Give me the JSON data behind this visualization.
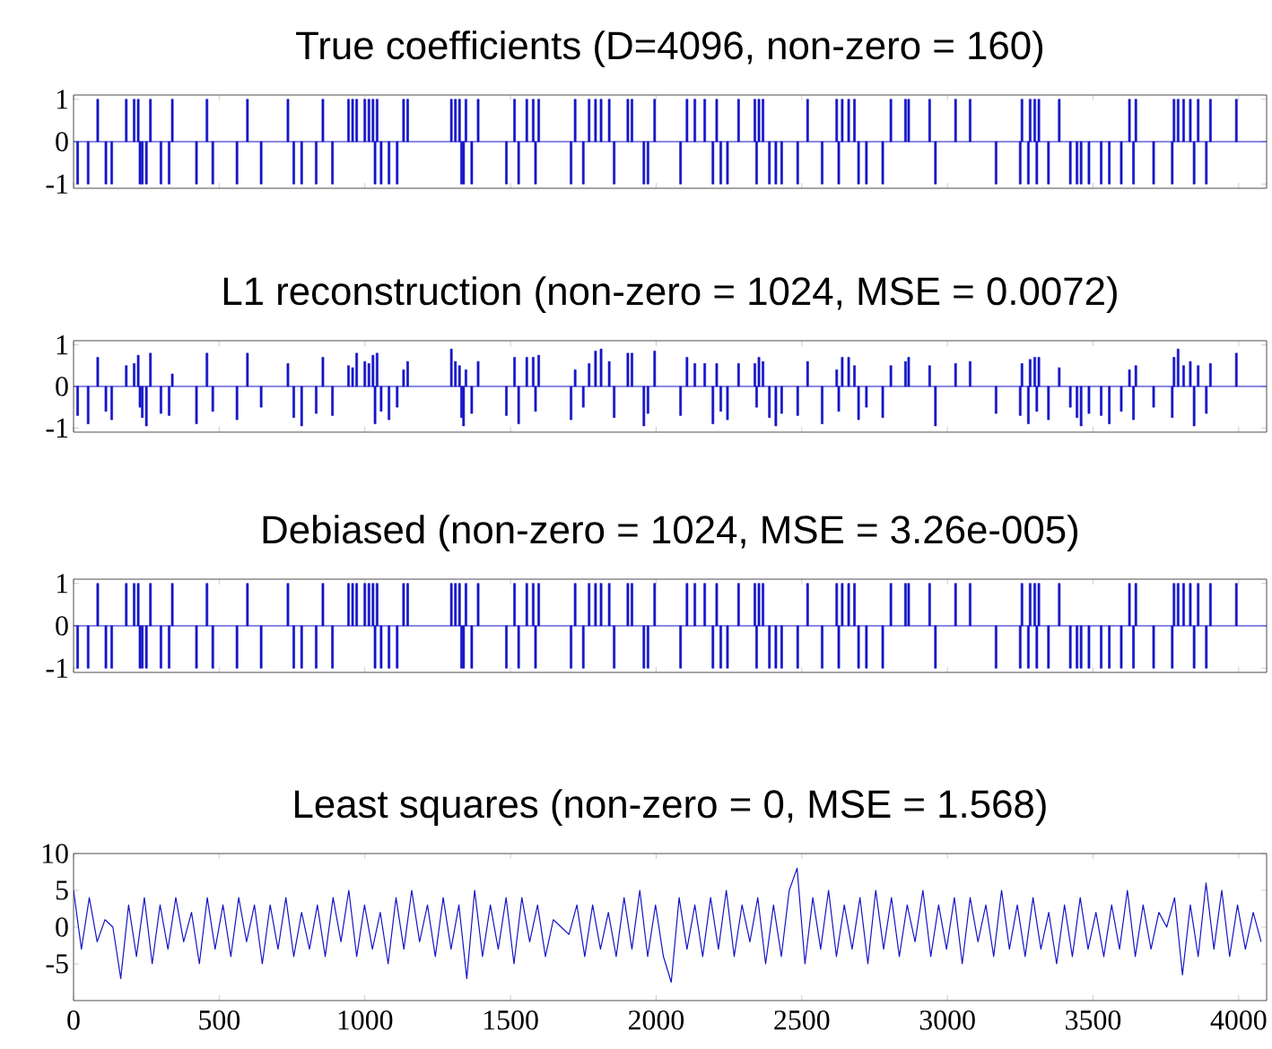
{
  "chart_data": [
    {
      "type": "bar",
      "title": "True coefficients (D=4096, non-zero = 160)",
      "color": "#1414c8",
      "tick_labels": "y",
      "xlim": [
        0,
        4096
      ],
      "ylim": [
        -1.1,
        1.1
      ],
      "xticks": [
        0,
        500,
        1000,
        1500,
        2000,
        2500,
        3000,
        3500,
        4000
      ],
      "yticks": [
        -1,
        0,
        1
      ],
      "ref_lines": [
        {
          "axis": "y",
          "value": 0,
          "color": "#1414c8"
        }
      ],
      "x": [
        14,
        50,
        83,
        111,
        131,
        181,
        208,
        222,
        228,
        236,
        250,
        264,
        300,
        328,
        339,
        422,
        458,
        478,
        561,
        597,
        644,
        736,
        756,
        783,
        833,
        856,
        889,
        944,
        958,
        972,
        1000,
        1014,
        1028,
        1035,
        1042,
        1056,
        1083,
        1111,
        1133,
        1147,
        1297,
        1311,
        1325,
        1332,
        1339,
        1347,
        1367,
        1389,
        1486,
        1514,
        1528,
        1556,
        1578,
        1586,
        1597,
        1708,
        1722,
        1750,
        1770,
        1792,
        1811,
        1839,
        1856,
        1903,
        1917,
        1958,
        1972,
        1995,
        2084,
        2106,
        2133,
        2167,
        2195,
        2208,
        2222,
        2245,
        2283,
        2339,
        2345,
        2353,
        2367,
        2389,
        2411,
        2431,
        2486,
        2520,
        2570,
        2620,
        2627,
        2639,
        2661,
        2681,
        2695,
        2722,
        2778,
        2806,
        2856,
        2867,
        2939,
        2959,
        3028,
        3078,
        3167,
        3250,
        3256,
        3278,
        3284,
        3300,
        3307,
        3314,
        3347,
        3384,
        3422,
        3445,
        3459,
        3486,
        3528,
        3556,
        3597,
        3625,
        3639,
        3647,
        3708,
        3772,
        3778,
        3792,
        3811,
        3834,
        3847,
        3861,
        3889,
        3903,
        3992
      ],
      "values": [
        -1,
        -1,
        1,
        -1,
        -1,
        1,
        1,
        1,
        -1,
        -1,
        -1,
        1,
        -1,
        -1,
        1,
        -1,
        1,
        -1,
        -1,
        1,
        -1,
        1,
        -1,
        -1,
        -1,
        1,
        -1,
        1,
        1,
        1,
        1,
        1,
        1,
        -1,
        1,
        -1,
        -1,
        -1,
        1,
        1,
        1,
        1,
        1,
        -1,
        -1,
        1,
        -1,
        1,
        -1,
        1,
        -1,
        1,
        1,
        -1,
        1,
        -1,
        1,
        -1,
        1,
        1,
        1,
        1,
        -1,
        1,
        1,
        -1,
        -1,
        1,
        -1,
        1,
        1,
        1,
        -1,
        1,
        -1,
        -1,
        1,
        1,
        -1,
        1,
        1,
        -1,
        -1,
        -1,
        -1,
        1,
        -1,
        1,
        -1,
        1,
        1,
        1,
        -1,
        -1,
        -1,
        1,
        1,
        1,
        1,
        -1,
        1,
        1,
        -1,
        -1,
        1,
        -1,
        1,
        1,
        -1,
        1,
        -1,
        1,
        -1,
        -1,
        -1,
        -1,
        -1,
        -1,
        -1,
        1,
        -1,
        1,
        -1,
        -1,
        1,
        1,
        1,
        1,
        -1,
        1,
        -1,
        1,
        1
      ]
    },
    {
      "type": "bar",
      "title": "L1 reconstruction (non-zero = 1024, MSE = 0.0072)",
      "color": "#1414c8",
      "tick_labels": "y",
      "xlim": [
        0,
        4096
      ],
      "ylim": [
        -1.1,
        1.1
      ],
      "xticks": [
        0,
        500,
        1000,
        1500,
        2000,
        2500,
        3000,
        3500,
        4000
      ],
      "yticks": [
        -1,
        0,
        1
      ],
      "ref_lines": [
        {
          "axis": "y",
          "value": 0,
          "color": "#1414c8"
        }
      ],
      "x": [
        14,
        50,
        83,
        111,
        131,
        181,
        208,
        222,
        228,
        236,
        250,
        264,
        300,
        328,
        339,
        422,
        458,
        478,
        561,
        597,
        644,
        736,
        756,
        783,
        833,
        856,
        889,
        944,
        958,
        972,
        1000,
        1014,
        1028,
        1035,
        1042,
        1056,
        1083,
        1111,
        1133,
        1147,
        1297,
        1311,
        1325,
        1332,
        1339,
        1347,
        1367,
        1389,
        1486,
        1514,
        1528,
        1556,
        1578,
        1586,
        1597,
        1708,
        1722,
        1750,
        1770,
        1792,
        1811,
        1839,
        1856,
        1903,
        1917,
        1958,
        1972,
        1995,
        2084,
        2106,
        2133,
        2167,
        2195,
        2208,
        2222,
        2245,
        2283,
        2339,
        2345,
        2353,
        2367,
        2389,
        2411,
        2431,
        2486,
        2520,
        2570,
        2620,
        2627,
        2639,
        2661,
        2681,
        2695,
        2722,
        2778,
        2806,
        2856,
        2867,
        2939,
        2959,
        3028,
        3078,
        3167,
        3250,
        3256,
        3278,
        3284,
        3300,
        3307,
        3314,
        3347,
        3384,
        3422,
        3445,
        3459,
        3486,
        3528,
        3556,
        3597,
        3625,
        3639,
        3647,
        3708,
        3772,
        3778,
        3792,
        3811,
        3834,
        3847,
        3861,
        3889,
        3903,
        3992
      ],
      "values": [
        -0.7,
        -0.9,
        0.7,
        -0.6,
        -0.8,
        0.5,
        0.55,
        0.75,
        -0.5,
        -0.75,
        -0.95,
        0.8,
        -0.65,
        -0.7,
        0.3,
        -0.9,
        0.8,
        -0.6,
        -0.8,
        0.8,
        -0.5,
        0.55,
        -0.75,
        -0.95,
        -0.65,
        0.7,
        -0.7,
        0.5,
        0.45,
        0.8,
        0.6,
        0.55,
        0.75,
        -0.9,
        0.8,
        -0.6,
        -0.8,
        -0.5,
        0.4,
        0.6,
        0.9,
        0.6,
        0.5,
        -0.75,
        -0.95,
        0.4,
        -0.65,
        0.6,
        -0.7,
        0.7,
        -0.9,
        0.7,
        0.7,
        -0.6,
        0.75,
        -0.8,
        0.4,
        -0.5,
        0.55,
        0.85,
        0.9,
        0.6,
        -0.75,
        0.8,
        0.8,
        -0.95,
        -0.65,
        0.85,
        -0.7,
        0.7,
        0.55,
        0.55,
        -0.9,
        0.55,
        -0.6,
        -0.8,
        0.55,
        0.55,
        -0.5,
        0.7,
        0.6,
        -0.75,
        -0.95,
        -0.65,
        -0.7,
        0.6,
        -0.9,
        0.4,
        -0.6,
        0.7,
        0.7,
        0.5,
        -0.8,
        -0.5,
        -0.75,
        0.5,
        0.6,
        0.7,
        0.5,
        -0.95,
        0.55,
        0.6,
        -0.65,
        -0.7,
        0.55,
        -0.9,
        0.65,
        0.7,
        -0.6,
        0.7,
        -0.8,
        0.45,
        -0.5,
        -0.75,
        -0.95,
        -0.65,
        -0.7,
        -0.9,
        -0.6,
        0.4,
        -0.8,
        0.5,
        -0.5,
        -0.75,
        0.7,
        0.9,
        0.5,
        0.6,
        -0.95,
        0.5,
        -0.65,
        0.55,
        0.8
      ]
    },
    {
      "type": "bar",
      "title": "Debiased (non-zero = 1024, MSE = 3.26e-005)",
      "color": "#1414c8",
      "tick_labels": "y",
      "xlim": [
        0,
        4096
      ],
      "ylim": [
        -1.1,
        1.1
      ],
      "xticks": [
        0,
        500,
        1000,
        1500,
        2000,
        2500,
        3000,
        3500,
        4000
      ],
      "yticks": [
        -1,
        0,
        1
      ],
      "ref_lines": [
        {
          "axis": "y",
          "value": 0,
          "color": "#1414c8"
        }
      ],
      "x": [
        14,
        50,
        83,
        111,
        131,
        181,
        208,
        222,
        228,
        236,
        250,
        264,
        300,
        328,
        339,
        422,
        458,
        478,
        561,
        597,
        644,
        736,
        756,
        783,
        833,
        856,
        889,
        944,
        958,
        972,
        1000,
        1014,
        1028,
        1035,
        1042,
        1056,
        1083,
        1111,
        1133,
        1147,
        1297,
        1311,
        1325,
        1332,
        1339,
        1347,
        1367,
        1389,
        1486,
        1514,
        1528,
        1556,
        1578,
        1586,
        1597,
        1708,
        1722,
        1750,
        1770,
        1792,
        1811,
        1839,
        1856,
        1903,
        1917,
        1958,
        1972,
        1995,
        2084,
        2106,
        2133,
        2167,
        2195,
        2208,
        2222,
        2245,
        2283,
        2339,
        2345,
        2353,
        2367,
        2389,
        2411,
        2431,
        2486,
        2520,
        2570,
        2620,
        2627,
        2639,
        2661,
        2681,
        2695,
        2722,
        2778,
        2806,
        2856,
        2867,
        2939,
        2959,
        3028,
        3078,
        3167,
        3250,
        3256,
        3278,
        3284,
        3300,
        3307,
        3314,
        3347,
        3384,
        3422,
        3445,
        3459,
        3486,
        3528,
        3556,
        3597,
        3625,
        3639,
        3647,
        3708,
        3772,
        3778,
        3792,
        3811,
        3834,
        3847,
        3861,
        3889,
        3903,
        3992
      ],
      "values": [
        -1,
        -1,
        1,
        -1,
        -1,
        1,
        1,
        1,
        -1,
        -1,
        -1,
        1,
        -1,
        -1,
        1,
        -1,
        1,
        -1,
        -1,
        1,
        -1,
        1,
        -1,
        -1,
        -1,
        1,
        -1,
        1,
        1,
        1,
        1,
        1,
        1,
        -1,
        1,
        -1,
        -1,
        -1,
        1,
        1,
        1,
        1,
        1,
        -1,
        -1,
        1,
        -1,
        1,
        -1,
        1,
        -1,
        1,
        1,
        -1,
        1,
        -1,
        1,
        -1,
        1,
        1,
        1,
        1,
        -1,
        1,
        1,
        -1,
        -1,
        1,
        -1,
        1,
        1,
        1,
        -1,
        1,
        -1,
        -1,
        1,
        1,
        -1,
        1,
        1,
        -1,
        -1,
        -1,
        -1,
        1,
        -1,
        1,
        -1,
        1,
        1,
        1,
        -1,
        -1,
        -1,
        1,
        1,
        1,
        1,
        -1,
        1,
        1,
        -1,
        -1,
        1,
        -1,
        1,
        1,
        -1,
        1,
        -1,
        1,
        -1,
        -1,
        -1,
        -1,
        -1,
        -1,
        -1,
        1,
        -1,
        1,
        -1,
        -1,
        1,
        1,
        1,
        1,
        -1,
        1,
        -1,
        1,
        1
      ]
    },
    {
      "type": "line",
      "title": "Least squares (non-zero = 0, MSE = 1.568)",
      "color": "#1414c8",
      "line_style": "solid",
      "xlim": [
        0,
        4096
      ],
      "ylim": [
        -10,
        10
      ],
      "xticks": [
        0,
        500,
        1000,
        1500,
        2000,
        2500,
        3000,
        3500,
        4000
      ],
      "yticks": [
        -5,
        0,
        5,
        10
      ],
      "x": [
        0,
        27,
        54,
        81,
        108,
        135,
        162,
        189,
        216,
        243,
        270,
        297,
        324,
        351,
        378,
        405,
        432,
        459,
        486,
        513,
        540,
        567,
        594,
        621,
        648,
        675,
        702,
        729,
        756,
        783,
        810,
        837,
        864,
        891,
        918,
        945,
        972,
        999,
        1026,
        1053,
        1080,
        1107,
        1134,
        1161,
        1188,
        1215,
        1242,
        1269,
        1296,
        1323,
        1350,
        1377,
        1404,
        1431,
        1458,
        1485,
        1512,
        1539,
        1566,
        1593,
        1620,
        1647,
        1674,
        1701,
        1728,
        1755,
        1782,
        1809,
        1836,
        1863,
        1890,
        1917,
        1944,
        1971,
        1998,
        2025,
        2052,
        2079,
        2106,
        2133,
        2160,
        2187,
        2214,
        2241,
        2268,
        2295,
        2322,
        2349,
        2376,
        2403,
        2430,
        2457,
        2484,
        2511,
        2538,
        2565,
        2592,
        2619,
        2646,
        2673,
        2700,
        2727,
        2754,
        2781,
        2808,
        2835,
        2862,
        2889,
        2916,
        2943,
        2970,
        2997,
        3024,
        3051,
        3078,
        3105,
        3132,
        3159,
        3186,
        3213,
        3240,
        3267,
        3294,
        3321,
        3348,
        3375,
        3402,
        3429,
        3456,
        3483,
        3510,
        3537,
        3564,
        3591,
        3618,
        3645,
        3672,
        3699,
        3726,
        3753,
        3780,
        3807,
        3834,
        3861,
        3888,
        3915,
        3942,
        3969,
        3996,
        4023,
        4050,
        4077
      ],
      "values": [
        5,
        -3,
        4,
        -2,
        1,
        0,
        -7,
        3,
        -4,
        4,
        -5,
        3,
        -3,
        4,
        -2,
        2,
        -5,
        4,
        -3,
        3,
        -4,
        4,
        -2,
        3,
        -5,
        3,
        -3,
        4,
        -4,
        2,
        -3,
        3,
        -4,
        4,
        -2,
        5,
        -4,
        3,
        -3,
        2,
        -5,
        4,
        -3,
        5,
        -2,
        3,
        -4,
        4,
        -3,
        3,
        -7,
        5,
        -4,
        3,
        -3,
        4,
        -5,
        4,
        -2,
        3,
        -4,
        1,
        0,
        -1,
        3,
        -4,
        3,
        -3,
        2,
        -4,
        4,
        -3,
        5,
        -4,
        3,
        -4,
        -7.5,
        4,
        -3,
        3,
        -4,
        4,
        -3,
        5,
        -4,
        3,
        -2,
        4,
        -5,
        3,
        -4,
        5,
        8,
        -5,
        4,
        -3,
        5,
        -4,
        3,
        -3,
        4,
        -5,
        5,
        -3,
        4,
        -4,
        3,
        -2,
        5,
        -4,
        3,
        -3,
        4,
        -5,
        4,
        -2,
        3,
        -4,
        5,
        -3,
        3,
        -4,
        4,
        -3,
        2,
        -5,
        3,
        -4,
        4,
        -3,
        2,
        -4,
        3,
        -3,
        5,
        -4,
        3,
        -3,
        2,
        0,
        4,
        -6.5,
        3,
        -4,
        6,
        -3,
        5,
        -4,
        3,
        -3,
        2,
        -2
      ]
    }
  ]
}
